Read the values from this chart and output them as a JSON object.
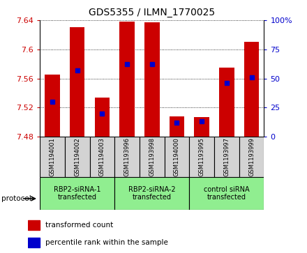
{
  "title": "GDS5355 / ILMN_1770025",
  "samples": [
    "GSM1194001",
    "GSM1194002",
    "GSM1194003",
    "GSM1193996",
    "GSM1193998",
    "GSM1194000",
    "GSM1193995",
    "GSM1193997",
    "GSM1193999"
  ],
  "transformed_count": [
    7.565,
    7.63,
    7.534,
    7.638,
    7.637,
    7.508,
    7.507,
    7.575,
    7.61
  ],
  "percentile_rank": [
    30,
    57,
    20,
    62,
    62,
    12,
    13,
    46,
    51
  ],
  "ylim_left": [
    7.48,
    7.64
  ],
  "ylim_right": [
    0,
    100
  ],
  "yticks_left": [
    7.48,
    7.52,
    7.56,
    7.6,
    7.64
  ],
  "yticks_right": [
    0,
    25,
    50,
    75,
    100
  ],
  "bar_color": "#cc0000",
  "dot_color": "#0000cc",
  "groups": [
    {
      "label": "RBP2-siRNA-1\ntransfected",
      "start": 0,
      "end": 3,
      "color": "#90ee90"
    },
    {
      "label": "RBP2-siRNA-2\ntransfected",
      "start": 3,
      "end": 6,
      "color": "#90ee90"
    },
    {
      "label": "control siRNA\ntransfected",
      "start": 6,
      "end": 9,
      "color": "#90ee90"
    }
  ],
  "protocol_label": "protocol",
  "legend_items": [
    {
      "color": "#cc0000",
      "label": "transformed count"
    },
    {
      "color": "#0000cc",
      "label": "percentile rank within the sample"
    }
  ],
  "bar_width": 0.6,
  "dot_size": 4
}
